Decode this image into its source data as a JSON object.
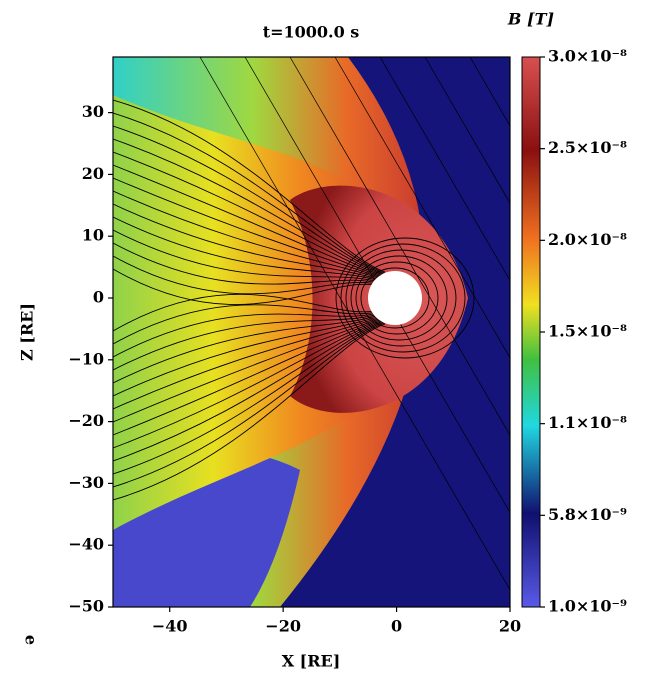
{
  "chart_data": {
    "type": "heatmap",
    "title": "t=1000.0 s",
    "xlabel": "X [RE]",
    "ylabel": "Z [RE]",
    "xlim": [
      -50,
      20
    ],
    "ylim": [
      -50,
      39
    ],
    "xticks": [
      {
        "value": -40,
        "label": "−40"
      },
      {
        "value": -20,
        "label": "−20"
      },
      0,
      20
    ],
    "yticks": [
      {
        "value": -50,
        "label": "−50"
      },
      {
        "value": -40,
        "label": "−40"
      },
      {
        "value": -30,
        "label": "−30"
      },
      {
        "value": -20,
        "label": "−20"
      },
      {
        "value": -10,
        "label": "−10"
      },
      0,
      10,
      20,
      30
    ],
    "colorbar": {
      "label": "B [T]",
      "lim": [
        1e-09,
        3e-08
      ],
      "ticks": [
        {
          "value": 1e-09,
          "label": "1.0×10⁻⁹"
        },
        {
          "value": 5.8e-09,
          "label": "5.8×10⁻⁹"
        },
        {
          "value": 1.1e-08,
          "label": "1.1×10⁻⁸"
        },
        {
          "value": 1.5e-08,
          "label": "1.5×10⁻⁸"
        },
        {
          "value": 2e-08,
          "label": "2.0×10⁻⁸"
        },
        {
          "value": 2.5e-08,
          "label": "2.5×10⁻⁸"
        },
        {
          "value": 3e-08,
          "label": "3.0×10⁻⁸"
        }
      ]
    }
  },
  "overlay_text": "e"
}
